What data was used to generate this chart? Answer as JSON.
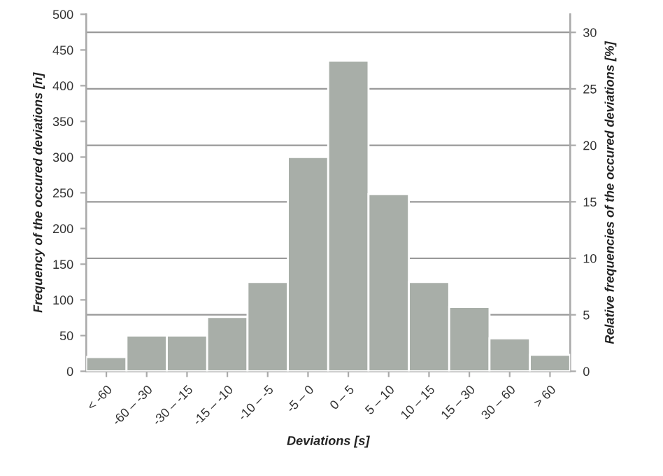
{
  "chart_data": {
    "type": "bar",
    "xlabel": "Deviations [s]",
    "ylabel": "Frequency of the occured deviations [n]",
    "y2label": "Relative frequencies of the occured deviations [%]",
    "categories": [
      "< -60",
      "-60 – -30",
      "-30 – -15",
      "-15 – -10",
      "-10 – -5",
      "-5 – 0",
      "0 – 5",
      "5 – 10",
      "10 – 15",
      "15 – 30",
      "30 – 60",
      "> 60"
    ],
    "series": [
      {
        "color": "#a8aea8",
        "values": [
          20,
          50,
          50,
          76,
          125,
          300,
          435,
          248,
          125,
          90,
          46,
          23
        ]
      }
    ],
    "ylim": [
      0,
      500
    ],
    "yticks": [
      0,
      50,
      100,
      150,
      200,
      250,
      300,
      350,
      400,
      450,
      500
    ],
    "y2lim": [
      0,
      31.6
    ],
    "y2ticks": [
      0,
      5,
      10,
      15,
      20,
      25,
      30
    ],
    "grid": "y2",
    "legend": false
  }
}
